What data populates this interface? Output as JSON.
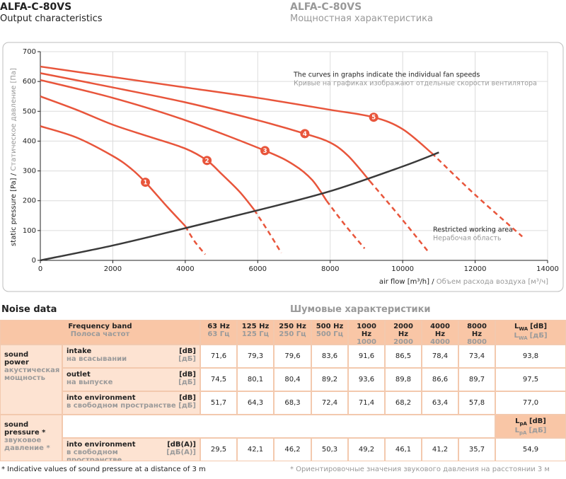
{
  "header": {
    "title_en": "ALFA-C-80VS",
    "subtitle_en": "Output characteristics",
    "title_ru": "ALFA-C-80VS",
    "subtitle_ru": "Мощностная характеристика"
  },
  "chart_data": {
    "type": "line",
    "ylabel": [
      "static pressure [Pa] /",
      " Статическое давление [Па]"
    ],
    "xlabel": [
      "air flow [m³/h] /",
      " Объем расхода воздуха [м³/ч]"
    ],
    "xlim": [
      0,
      14000
    ],
    "ylim": [
      0,
      700
    ],
    "xticks": [
      0,
      2000,
      4000,
      6000,
      8000,
      10000,
      12000,
      14000
    ],
    "yticks": [
      0,
      100,
      200,
      300,
      400,
      500,
      600,
      700
    ],
    "grid": true,
    "annotations": [
      {
        "en": "The curves in graphs indicate the individual fan speeds",
        "ru": "Кривые на графиках изображают отдельные скорости вентилятора"
      },
      {
        "en": "Restricted working area",
        "ru": "Нерабочая область"
      }
    ],
    "series": [
      {
        "name": "1",
        "color": "#e8553b",
        "x": [
          0,
          1000,
          2000,
          2500,
          2900,
          3500,
          4000
        ],
        "values": [
          450,
          412,
          350,
          308,
          262,
          180,
          115
        ]
      },
      {
        "name": "2",
        "color": "#e8553b",
        "x": [
          0,
          1000,
          2000,
          3000,
          4000,
          4600,
          5000,
          5500,
          5900
        ],
        "values": [
          550,
          505,
          455,
          415,
          375,
          335,
          290,
          230,
          170
        ]
      },
      {
        "name": "3",
        "color": "#e8553b",
        "x": [
          0,
          2000,
          4000,
          6200,
          7000,
          7500,
          7900
        ],
        "values": [
          605,
          545,
          470,
          368,
          320,
          270,
          200
        ]
      },
      {
        "name": "4",
        "color": "#e8553b",
        "x": [
          0,
          2000,
          4000,
          6000,
          7300,
          8000,
          8500,
          9100
        ],
        "values": [
          628,
          580,
          530,
          470,
          425,
          395,
          350,
          265
        ]
      },
      {
        "name": "5",
        "color": "#e8553b",
        "x": [
          0,
          2000,
          4000,
          6000,
          8000,
          9200,
          10000,
          10800
        ],
        "values": [
          650,
          615,
          580,
          545,
          505,
          480,
          440,
          360
        ]
      },
      {
        "color": "#e8553b",
        "style": "dashed",
        "x": [
          4000,
          4250,
          4550
        ],
        "values": [
          115,
          65,
          20
        ]
      },
      {
        "color": "#e8553b",
        "style": "dashed",
        "x": [
          5900,
          6300,
          6650
        ],
        "values": [
          170,
          95,
          25
        ]
      },
      {
        "color": "#e8553b",
        "style": "dashed",
        "x": [
          7900,
          8400,
          8950
        ],
        "values": [
          200,
          120,
          40
        ]
      },
      {
        "color": "#e8553b",
        "style": "dashed",
        "x": [
          9100,
          9900,
          10700
        ],
        "values": [
          265,
          150,
          30
        ]
      },
      {
        "color": "#e8553b",
        "style": "dashed",
        "x": [
          10800,
          12000,
          13300
        ],
        "values": [
          360,
          220,
          80
        ]
      },
      {
        "color": "#3a3a3a",
        "x": [
          0,
          2000,
          4000,
          6000,
          8000,
          10000,
          11000
        ],
        "values": [
          0,
          50,
          108,
          168,
          232,
          315,
          362
        ]
      }
    ]
  },
  "noise": {
    "title_en": "Noise data",
    "title_ru": "Шумовые характеристики",
    "header": {
      "band_en": "Frequency band",
      "band_ru": "Полоса частот",
      "bands": [
        {
          "en": "63 Hz",
          "ru": "63 Гц"
        },
        {
          "en": "125 Hz",
          "ru": "125 Гц"
        },
        {
          "en": "250 Hz",
          "ru": "250 Гц"
        },
        {
          "en": "500 Hz",
          "ru": "500 Гц"
        },
        {
          "en": "1000 Hz",
          "ru": "1000 Гц"
        },
        {
          "en": "2000 Hz",
          "ru": "2000 Гц"
        },
        {
          "en": "4000 Hz",
          "ru": "4000 Гц"
        },
        {
          "en": "8000 Hz",
          "ru": "8000 Гц"
        }
      ],
      "total": {
        "en": {
          "main": "L",
          "sub": "WA",
          "unit": "[dB]"
        },
        "ru": {
          "main": "L",
          "sub": "WA",
          "unit": "[дБ]"
        }
      }
    },
    "groups": [
      {
        "label_en": [
          "sound",
          "power"
        ],
        "label_ru": [
          "акустическая",
          "мощность"
        ],
        "rows": [
          {
            "en": "intake",
            "ru": "на всасывании",
            "unit_en": "[dB]",
            "unit_ru": "[дБ]",
            "values": [
              "71,6",
              "79,3",
              "79,6",
              "83,6",
              "91,6",
              "86,5",
              "78,4",
              "73,4"
            ],
            "total": "93,8"
          },
          {
            "en": "outlet",
            "ru": "на выпуске",
            "unit_en": "[dB]",
            "unit_ru": "[дБ]",
            "values": [
              "74,5",
              "80,1",
              "80,4",
              "89,2",
              "93,6",
              "89,8",
              "86,6",
              "89,7"
            ],
            "total": "97,5"
          },
          {
            "en": "into environment",
            "ru": "в свободном пространстве",
            "unit_en": "[dB]",
            "unit_ru": "[дБ]",
            "values": [
              "51,7",
              "64,3",
              "68,3",
              "72,4",
              "71,4",
              "68,2",
              "63,4",
              "57,8"
            ],
            "total": "77,0"
          }
        ]
      },
      {
        "label_en": [
          "sound",
          "pressure *"
        ],
        "label_ru": [
          "звуковое",
          "давление *"
        ],
        "total_header": {
          "en": {
            "main": "L",
            "sub": "pA",
            "unit": "[dB]"
          },
          "ru": {
            "main": "L",
            "sub": "pA",
            "unit": "[дБ]"
          }
        },
        "rows": [
          {
            "en": "into environment",
            "ru": "в свободном пространстве",
            "unit_en": "[dB(A)]",
            "unit_ru": "[дБ(А)]",
            "values": [
              "29,5",
              "42,1",
              "46,2",
              "50,3",
              "49,2",
              "46,1",
              "41,2",
              "35,7"
            ],
            "total": "54,9"
          }
        ]
      }
    ],
    "footnote_en": "* Indicative values of sound pressure at a distance of 3 m",
    "footnote_ru": "* Ориентировочные значения звукового давления на расстоянии 3 м"
  }
}
